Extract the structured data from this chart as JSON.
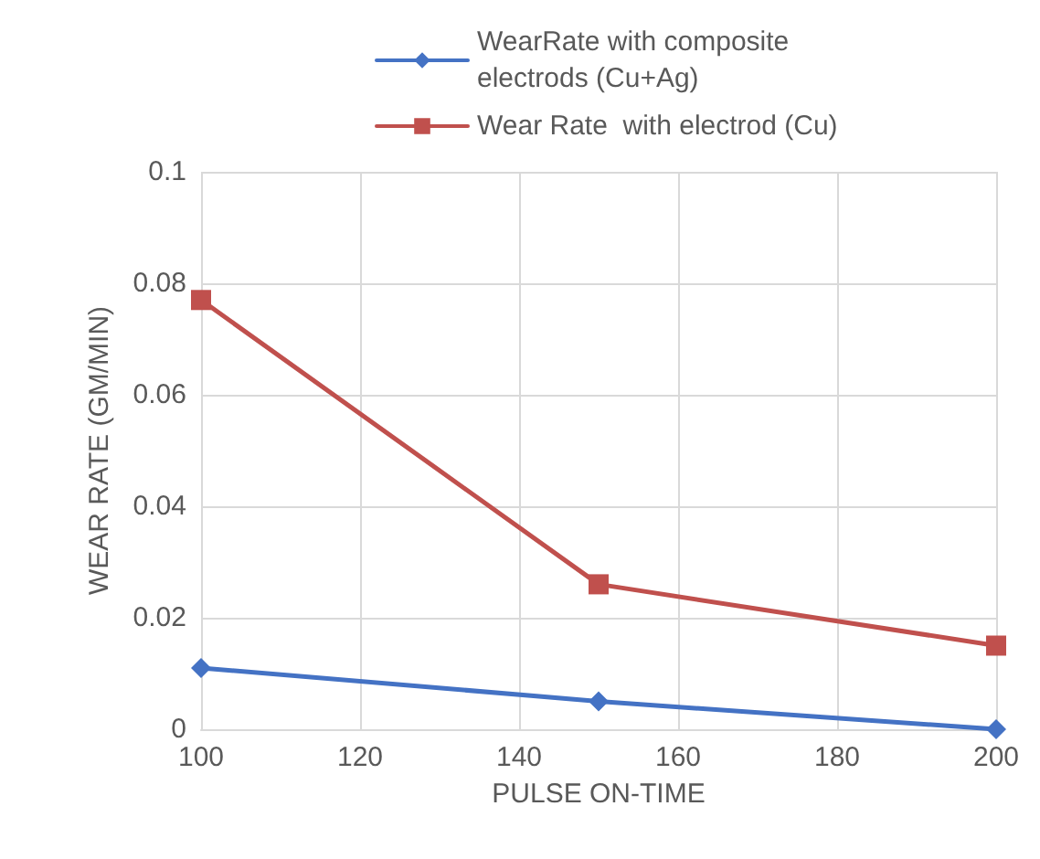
{
  "chart_data": {
    "type": "line",
    "xlabel": "PULSE ON-TIME",
    "ylabel": "WEAR RATE (GM/MIN)",
    "x": [
      100,
      150,
      200
    ],
    "series": [
      {
        "name": "WearRate with composite electrods (Cu+Ag)",
        "color": "#4472c4",
        "marker": "diamond",
        "values": [
          0.011,
          0.005,
          0
        ]
      },
      {
        "name": "Wear Rate  with electrod (Cu)",
        "color": "#c0504d",
        "marker": "square",
        "values": [
          0.077,
          0.026,
          0.015
        ]
      }
    ],
    "xlim": [
      100,
      200
    ],
    "xticks": [
      100,
      120,
      140,
      160,
      180,
      200
    ],
    "ylim": [
      0,
      0.1
    ],
    "yticks": [
      0,
      0.02,
      0.04,
      0.06,
      0.08,
      0.1
    ],
    "grid": true,
    "legend": "top"
  }
}
